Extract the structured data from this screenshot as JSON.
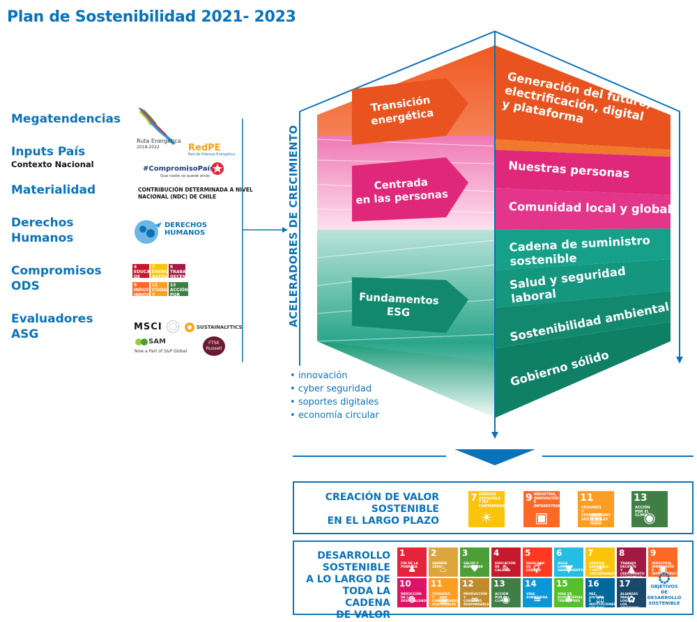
{
  "title": "Plan de Sostenibilidad 2021- 2023",
  "left": {
    "megatendencias": "Megatendencias",
    "inputs": "Inputs País",
    "contexto": "Contexto Nacional",
    "materialidad": "Materialidad",
    "derechos": [
      "Derechos",
      "Humanos"
    ],
    "compromisos": [
      "Compromisos",
      "ODS"
    ],
    "evaluadores": [
      "Evaluadores",
      "ASG"
    ],
    "logos": {
      "ruta": [
        "Ruta Energética",
        "2018-2022"
      ],
      "redpe": "RedPE",
      "redpe_sub": "Red de Pobreza Energética",
      "compromiso": "#CompromisoPaís",
      "compromiso_sub": "Que nadie se quede atrás",
      "ndc": "CONTRIBUCIÓN DETERMINADA A NIVEL NACIONAL (NDC) DE CHILE",
      "derechos": [
        "DERECHOS",
        "HUMANOS"
      ],
      "msci": "MSCI",
      "sustainalytics": "SUSTAINALYTICS",
      "sam": "SAM",
      "sp": "Now a Part of S&P Global",
      "ftse": [
        "FTSE",
        "Russell"
      ]
    },
    "mini_ods": [
      {
        "n": "4",
        "t": "EDUCACIÓN DE CALIDAD",
        "color": "#c5192d"
      },
      {
        "n": "7",
        "t": "ENERGÍA ASEQUIBLE Y NO CONTAMINANTE",
        "color": "#fcc30b"
      },
      {
        "n": "8",
        "t": "TRABAJO DECENTE Y CRECIMIENTO ECONÓMICO",
        "color": "#a21942"
      },
      {
        "n": "9",
        "t": "INDUSTRIA, INNOVACIÓN E INFRAESTRUCTURA",
        "color": "#fd6925"
      },
      {
        "n": "11",
        "t": "CIUDADES Y COMUNIDADES SOSTENIBLES",
        "color": "#fd9d24"
      },
      {
        "n": "13",
        "t": "ACCIÓN POR EL CLIMA",
        "color": "#3f7e44"
      }
    ]
  },
  "center": {
    "aceleradores": "ACELERADORES DE CRECIMIENTO",
    "bullets": [
      "innovación",
      "cyber seguridad",
      "soportes digitales",
      "economía circular"
    ],
    "arrows": [
      [
        "Transición",
        "energética"
      ],
      [
        "Centrada",
        "en las personas"
      ],
      [
        "Fundamentos",
        "ESG"
      ]
    ],
    "right_labels": [
      [
        "Generación del futuro,",
        "electrificación, digital",
        "y plataforma"
      ],
      [
        "Nuestras personas"
      ],
      [
        "Comunidad local y global"
      ],
      [
        "Cadena de suministro",
        "sostenible"
      ],
      [
        "Salud y seguridad",
        "laboral"
      ],
      [
        "Sostenibilidad ambiental"
      ],
      [
        "Gobierno sólido"
      ]
    ]
  },
  "box1": {
    "title": [
      "CREACIÓN DE VALOR",
      "SOSTENIBLE",
      "EN EL LARGO PLAZO"
    ],
    "ods": [
      {
        "n": "7",
        "t": "ENERGÍA ASEQUIBLE Y NO CONTAMINANTE",
        "color": "#fcc30b",
        "icon": "☀"
      },
      {
        "n": "9",
        "t": "INDUSTRIA, INNOVACIÓN E INFRAESTRUCTURA",
        "color": "#fd6925",
        "icon": "▣"
      },
      {
        "n": "11",
        "t": "CIUDADES Y COMUNIDADES SOSTENIBLES",
        "color": "#fd9d24",
        "icon": "▥"
      },
      {
        "n": "13",
        "t": "ACCIÓN POR EL CLIMA",
        "color": "#3f7e44",
        "icon": "◉"
      }
    ]
  },
  "box2": {
    "title": [
      "DESARROLLO",
      "SOSTENIBLE",
      "A LO LARGO DE",
      "TODA LA CADENA",
      "DE VALOR"
    ],
    "ods": [
      {
        "n": "1",
        "t": "FIN DE LA POBREZA",
        "color": "#e5243b",
        "icon": "♟"
      },
      {
        "n": "2",
        "t": "HAMBRE CERO",
        "color": "#dda63a",
        "icon": "♨"
      },
      {
        "n": "3",
        "t": "SALUD Y BIENESTAR",
        "color": "#4c9f38",
        "icon": "♥"
      },
      {
        "n": "4",
        "t": "EDUCACIÓN DE CALIDAD",
        "color": "#c5192d",
        "icon": "✎"
      },
      {
        "n": "5",
        "t": "IGUALDAD DE GÉNERO",
        "color": "#ff3a21",
        "icon": "⚥"
      },
      {
        "n": "6",
        "t": "AGUA LIMPIA Y SANEAMIENTO",
        "color": "#26bde2",
        "icon": "▼"
      },
      {
        "n": "7",
        "t": "ENERGÍA ASEQUIBLE Y NO CONTAMINANTE",
        "color": "#fcc30b",
        "icon": "☀"
      },
      {
        "n": "8",
        "t": "TRABAJO DECENTE Y CRECIMIENTO ECONÓMICO",
        "color": "#a21942",
        "icon": "▲"
      },
      {
        "n": "9",
        "t": "INDUSTRIA, INNOVACIÓN E INFRAESTRUCTURA",
        "color": "#fd6925",
        "icon": "▣"
      },
      {
        "n": "10",
        "t": "REDUCCIÓN DE LAS DESIGUALDADES",
        "color": "#dd1367",
        "icon": "⊜"
      },
      {
        "n": "11",
        "t": "CIUDADES Y COMUNIDADES SOSTENIBLES",
        "color": "#fd9d24",
        "icon": "▥"
      },
      {
        "n": "12",
        "t": "PRODUCCIÓN Y CONSUMO RESPONSABLES",
        "color": "#bf8b2e",
        "icon": "∞"
      },
      {
        "n": "13",
        "t": "ACCIÓN POR EL CLIMA",
        "color": "#3f7e44",
        "icon": "◉"
      },
      {
        "n": "14",
        "t": "VIDA SUBMARINA",
        "color": "#0a97d9",
        "icon": "≈"
      },
      {
        "n": "15",
        "t": "VIDA DE ECOSISTEMAS TERRESTRES",
        "color": "#56c02b",
        "icon": "♣"
      },
      {
        "n": "16",
        "t": "PAZ, JUSTICIA E INSTITUCIONES SÓLIDAS",
        "color": "#00689d",
        "icon": "⚖"
      },
      {
        "n": "17",
        "t": "ALIANZAS PARA LOGRAR LOS OBJETIVOS",
        "color": "#19486a",
        "icon": "✿"
      }
    ],
    "ods_logo": [
      "OBJETIVOS",
      "DE DESARROLLO",
      "SOSTENIBLE"
    ]
  }
}
